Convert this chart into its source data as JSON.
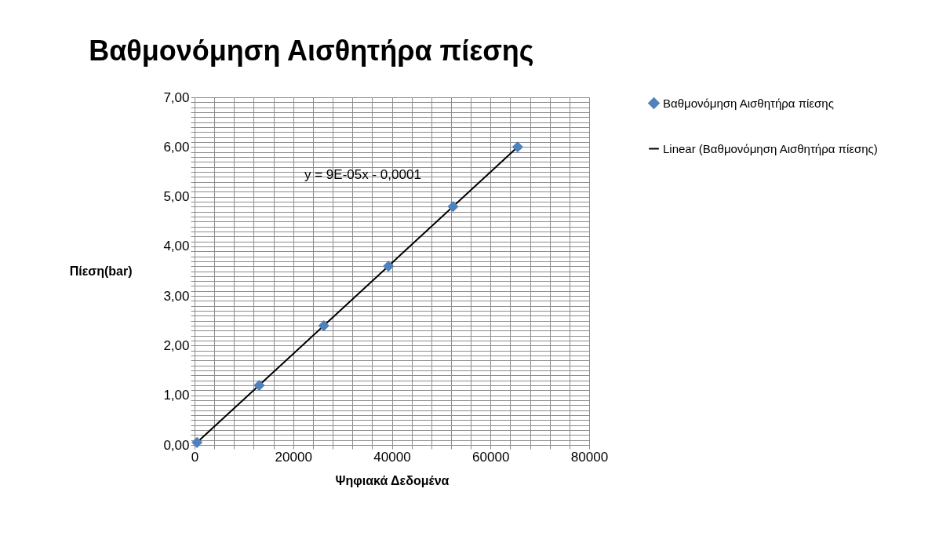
{
  "chart_data": {
    "type": "scatter",
    "title": "Βαθμονόμηση Αισθητήρα πίεσης",
    "xlabel": "Ψηφιακά Δεδομένα",
    "ylabel": "Πίεση(bar)",
    "series": [
      {
        "name": "Βαθμονόμηση Αισθητήρα πίεσης",
        "marker": "diamond",
        "color": "#4f81bd",
        "x": [
          500,
          13100,
          26200,
          39300,
          52400,
          65500
        ],
        "values": [
          0.05,
          1.2,
          2.4,
          3.6,
          4.8,
          6.0
        ]
      },
      {
        "name": "Linear (Βαθμονόμηση Αισθητήρα πίεσης)",
        "type": "line",
        "marker": "none",
        "color": "#000000",
        "x": [
          500,
          65500
        ],
        "values": [
          0.05,
          6.0
        ]
      }
    ],
    "annotations": [
      "y = 9E-05x - 0,0001"
    ],
    "line_style": "solid",
    "grid": true,
    "legend": "right",
    "xlim": [
      0,
      80000
    ],
    "ylim": [
      0,
      7
    ],
    "xticks": [
      0,
      {
        "value": 4000,
        "label": null
      },
      {
        "value": 8000,
        "label": null
      },
      {
        "value": 12000,
        "label": null
      },
      {
        "value": 16000,
        "label": null
      },
      20000,
      {
        "value": 24000,
        "label": null
      },
      {
        "value": 28000,
        "label": null
      },
      {
        "value": 32000,
        "label": null
      },
      {
        "value": 36000,
        "label": null
      },
      40000,
      {
        "value": 44000,
        "label": null
      },
      {
        "value": 48000,
        "label": null
      },
      {
        "value": 52000,
        "label": null
      },
      {
        "value": 56000,
        "label": null
      },
      60000,
      {
        "value": 64000,
        "label": null
      },
      {
        "value": 68000,
        "label": null
      },
      {
        "value": 72000,
        "label": null
      },
      {
        "value": 76000,
        "label": null
      },
      80000
    ],
    "yticks": [
      {
        "value": 0,
        "label": "0,00"
      },
      {
        "value": 0.1,
        "label": null
      },
      {
        "value": 0.2,
        "label": null
      },
      {
        "value": 0.3,
        "label": null
      },
      {
        "value": 0.4,
        "label": null
      },
      {
        "value": 0.5,
        "label": null
      },
      {
        "value": 0.6,
        "label": null
      },
      {
        "value": 0.7,
        "label": null
      },
      {
        "value": 0.8,
        "label": null
      },
      {
        "value": 0.9,
        "label": null
      },
      {
        "value": 1,
        "label": "1,00"
      },
      {
        "value": 1.1,
        "label": null
      },
      {
        "value": 1.2,
        "label": null
      },
      {
        "value": 1.3,
        "label": null
      },
      {
        "value": 1.4,
        "label": null
      },
      {
        "value": 1.5,
        "label": null
      },
      {
        "value": 1.6,
        "label": null
      },
      {
        "value": 1.7,
        "label": null
      },
      {
        "value": 1.8,
        "label": null
      },
      {
        "value": 1.9,
        "label": null
      },
      {
        "value": 2,
        "label": "2,00"
      },
      {
        "value": 2.1,
        "label": null
      },
      {
        "value": 2.2,
        "label": null
      },
      {
        "value": 2.3,
        "label": null
      },
      {
        "value": 2.4,
        "label": null
      },
      {
        "value": 2.5,
        "label": null
      },
      {
        "value": 2.6,
        "label": null
      },
      {
        "value": 2.7,
        "label": null
      },
      {
        "value": 2.8,
        "label": null
      },
      {
        "value": 2.9,
        "label": null
      },
      {
        "value": 3,
        "label": "3,00"
      },
      {
        "value": 3.1,
        "label": null
      },
      {
        "value": 3.2,
        "label": null
      },
      {
        "value": 3.3,
        "label": null
      },
      {
        "value": 3.4,
        "label": null
      },
      {
        "value": 3.5,
        "label": null
      },
      {
        "value": 3.6,
        "label": null
      },
      {
        "value": 3.7,
        "label": null
      },
      {
        "value": 3.8,
        "label": null
      },
      {
        "value": 3.9,
        "label": null
      },
      {
        "value": 4,
        "label": "4,00"
      },
      {
        "value": 4.1,
        "label": null
      },
      {
        "value": 4.2,
        "label": null
      },
      {
        "value": 4.3,
        "label": null
      },
      {
        "value": 4.4,
        "label": null
      },
      {
        "value": 4.5,
        "label": null
      },
      {
        "value": 4.6,
        "label": null
      },
      {
        "value": 4.7,
        "label": null
      },
      {
        "value": 4.8,
        "label": null
      },
      {
        "value": 4.9,
        "label": null
      },
      {
        "value": 5,
        "label": "5,00"
      },
      {
        "value": 5.1,
        "label": null
      },
      {
        "value": 5.2,
        "label": null
      },
      {
        "value": 5.3,
        "label": null
      },
      {
        "value": 5.4,
        "label": null
      },
      {
        "value": 5.5,
        "label": null
      },
      {
        "value": 5.6,
        "label": null
      },
      {
        "value": 5.7,
        "label": null
      },
      {
        "value": 5.8,
        "label": null
      },
      {
        "value": 5.9,
        "label": null
      },
      {
        "value": 6,
        "label": "6,00"
      },
      {
        "value": 6.1,
        "label": null
      },
      {
        "value": 6.2,
        "label": null
      },
      {
        "value": 6.3,
        "label": null
      },
      {
        "value": 6.4,
        "label": null
      },
      {
        "value": 6.5,
        "label": null
      },
      {
        "value": 6.6,
        "label": null
      },
      {
        "value": 6.7,
        "label": null
      },
      {
        "value": 6.8,
        "label": null
      },
      {
        "value": 6.9,
        "label": null
      },
      {
        "value": 7,
        "label": "7,00"
      }
    ]
  }
}
